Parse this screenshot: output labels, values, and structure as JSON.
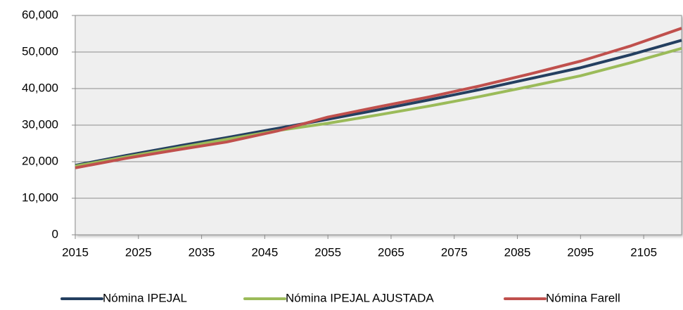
{
  "chart_data": {
    "type": "line",
    "x": [
      2015,
      2023,
      2031,
      2039,
      2047,
      2055,
      2063,
      2071,
      2079,
      2087,
      2095,
      2103,
      2111
    ],
    "series": [
      {
        "name": "Nómina IPEJAL",
        "color": "#243f60",
        "values": [
          19000,
          21700,
          24200,
          26600,
          29100,
          31600,
          34200,
          36900,
          39700,
          42700,
          45700,
          49300,
          53200
        ]
      },
      {
        "name": "Nómina IPEJAL AJUSTADA",
        "color": "#9bbb59",
        "values": [
          18800,
          21300,
          23700,
          26100,
          28500,
          30500,
          32800,
          35200,
          37800,
          40600,
          43500,
          47100,
          51000
        ]
      },
      {
        "name": "Nómina Farell",
        "color": "#c0504d",
        "values": [
          18300,
          20900,
          23200,
          25400,
          28400,
          32200,
          35000,
          37700,
          40700,
          44000,
          47500,
          51700,
          56500
        ]
      }
    ],
    "xlim": [
      2015,
      2111
    ],
    "xticks": [
      2015,
      2025,
      2035,
      2045,
      2055,
      2065,
      2075,
      2085,
      2095,
      2105
    ],
    "ylim": [
      0,
      60000
    ],
    "yticks": [
      0,
      {
        "value": 10000,
        "label": "10,000"
      },
      {
        "value": 20000,
        "label": "20,000"
      },
      {
        "value": 30000,
        "label": "30,000"
      },
      {
        "value": 40000,
        "label": "40,000"
      },
      {
        "value": 50000,
        "label": "50,000"
      },
      {
        "value": 60000,
        "label": "60,000"
      }
    ],
    "grid": true,
    "legend": "bottom"
  }
}
